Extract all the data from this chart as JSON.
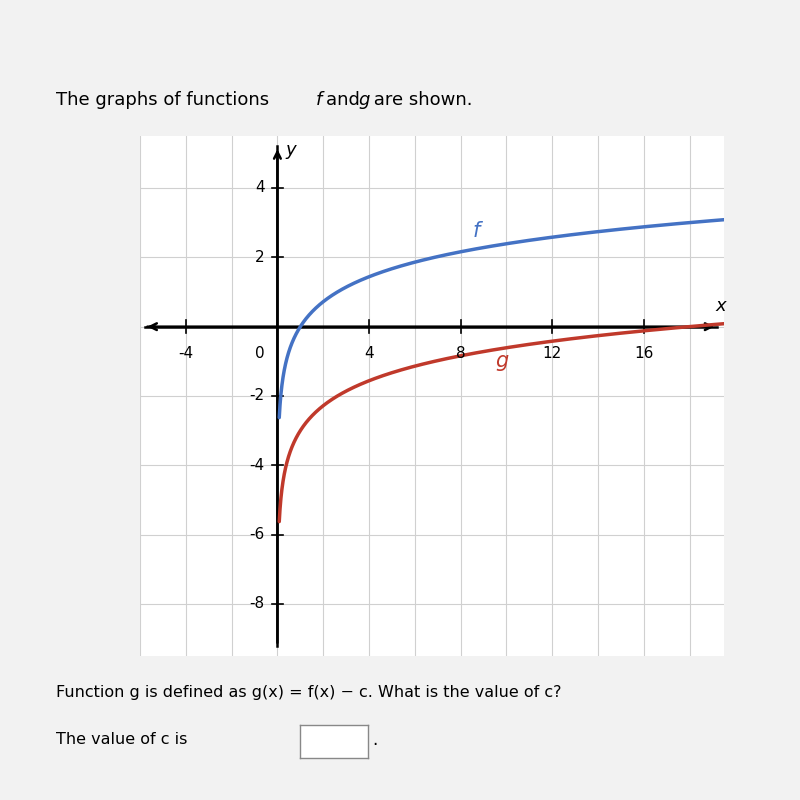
{
  "title": "The graphs of functions f and g are shown.",
  "f_label": "f",
  "g_label": "g",
  "f_color": "#4472c4",
  "g_color": "#c0392b",
  "grid_color": "#d0d0d0",
  "bg_color": "#f2f2f2",
  "plot_bg": "#ffffff",
  "axis_color": "#000000",
  "xmin": -6,
  "xmax": 19.5,
  "ymin": -9.5,
  "ymax": 5.5,
  "xtick_vals": [
    -4,
    4,
    8,
    12,
    16
  ],
  "ytick_vals": [
    -8,
    -6,
    -4,
    -2,
    2,
    4
  ],
  "c_value": 3,
  "log_a": 0.72,
  "x_start": 0.08,
  "line_width": 2.5,
  "grid_step": 2,
  "eq_line1": "Function g is defined as g(x) = f(x) − c. What is the value of c?",
  "eq_line2": "The value of c is"
}
